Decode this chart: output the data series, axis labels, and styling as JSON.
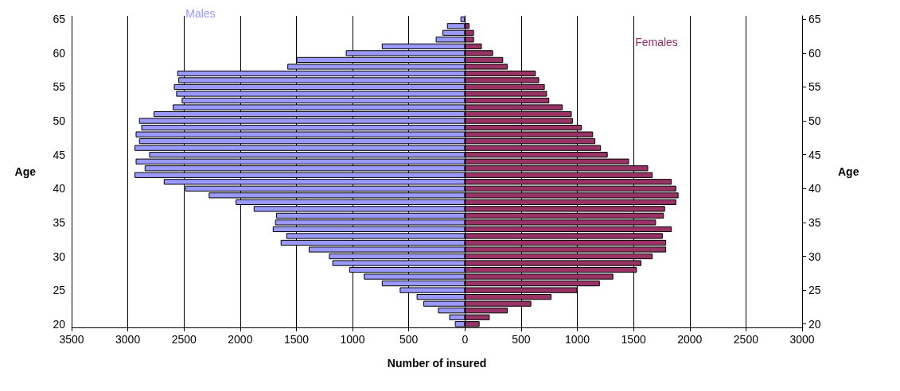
{
  "chart_data": {
    "type": "bar",
    "orientation": "horizontal",
    "stacked": true,
    "xlabel": "Number of insured",
    "ylabel": "Age",
    "y2label": "Age",
    "categories": [
      "65",
      null,
      null,
      null,
      null,
      "60",
      null,
      null,
      null,
      null,
      "55",
      null,
      null,
      null,
      null,
      "50",
      null,
      null,
      null,
      null,
      "45",
      null,
      null,
      null,
      null,
      "40",
      null,
      null,
      null,
      null,
      "35",
      null,
      null,
      null,
      null,
      "30",
      null,
      null,
      null,
      null,
      "25",
      null,
      null,
      null,
      null,
      "20"
    ],
    "series": [
      {
        "name": "Males",
        "color": "#9999ff",
        "values": [
          -40,
          -160,
          -200,
          -260,
          -740,
          -1060,
          -1500,
          -1580,
          -2560,
          -2550,
          -2590,
          -2570,
          -2520,
          -2600,
          -2770,
          -2900,
          -2880,
          -2930,
          -2900,
          -2940,
          -2810,
          -2930,
          -2850,
          -2940,
          -2680,
          -2490,
          -2280,
          -2040,
          -1880,
          -1680,
          -1690,
          -1710,
          -1590,
          -1640,
          -1390,
          -1210,
          -1180,
          -1030,
          -900,
          -740,
          -580,
          -430,
          -370,
          -240,
          -140,
          -90
        ]
      },
      {
        "name": "Females",
        "color": "#993366",
        "values": [
          null,
          40,
          80,
          80,
          150,
          250,
          340,
          380,
          630,
          660,
          710,
          730,
          750,
          870,
          950,
          960,
          1040,
          1140,
          1160,
          1210,
          1270,
          1460,
          1630,
          1670,
          1840,
          1880,
          1900,
          1880,
          1780,
          1770,
          1700,
          1840,
          1760,
          1790,
          1790,
          1670,
          1570,
          1530,
          1320,
          1200,
          1000,
          770,
          590,
          380,
          220,
          130
        ]
      }
    ],
    "xlim": [
      -3500,
      3000
    ],
    "xticks": [
      {
        "value": -3500,
        "label": "3500"
      },
      {
        "value": -3000,
        "label": "3000"
      },
      {
        "value": -2500,
        "label": "2500"
      },
      {
        "value": -2000,
        "label": "2000"
      },
      {
        "value": -1500,
        "label": "1500"
      },
      {
        "value": -1000,
        "label": "1000"
      },
      {
        "value": -500,
        "label": "500"
      },
      0,
      500,
      1000,
      1500,
      2000,
      2500,
      3000
    ],
    "grid": "x",
    "legend": false
  }
}
